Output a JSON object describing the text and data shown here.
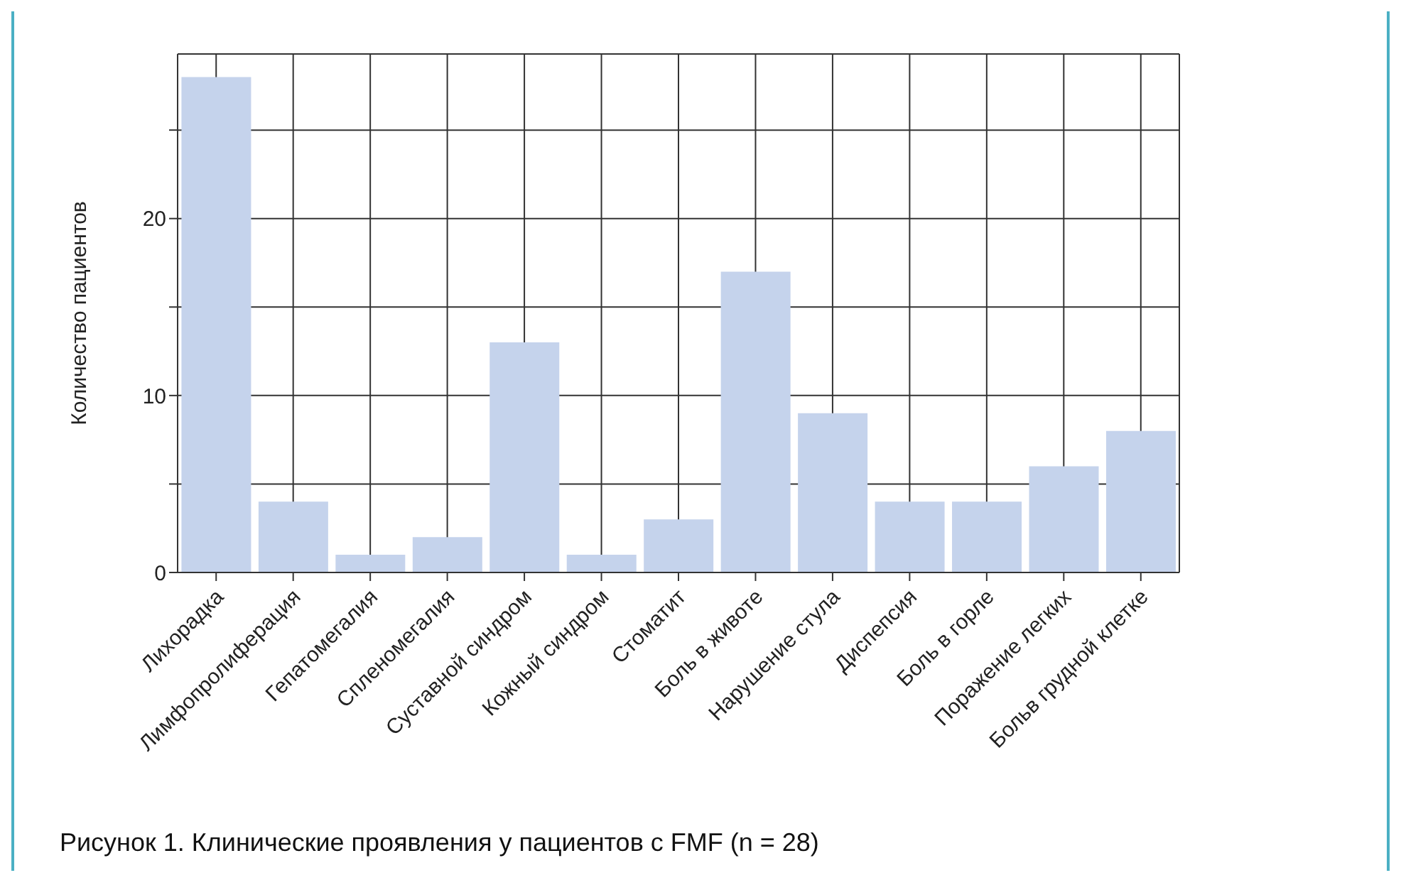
{
  "chart_data": {
    "type": "bar",
    "ylabel": "Количество пациентов",
    "categories": [
      "Лихорадка",
      "Лимфопролиферация",
      "Гепатомегалия",
      "Спленомегалия",
      "Суставной синдром",
      "Кожный синдром",
      "Стоматит",
      "Боль в животе",
      "Нарушение стула",
      "Диспепсия",
      "Боль в горле",
      "Поражение легких",
      "Больв грудной клетке"
    ],
    "values": [
      28,
      4,
      1,
      2,
      13,
      1,
      3,
      17,
      9,
      4,
      4,
      6,
      8
    ],
    "color": "#c5d3ec",
    "ylim": [
      0,
      29.3
    ],
    "yticks": [
      0,
      {
        "value": 5,
        "label": null
      },
      10,
      {
        "value": 15,
        "label": null
      },
      20,
      {
        "value": 25,
        "label": null
      }
    ],
    "grid": true,
    "annotations": [
      "Рисунок 1. Клинические проявления у пациентов с FMF (n = 28)"
    ]
  }
}
